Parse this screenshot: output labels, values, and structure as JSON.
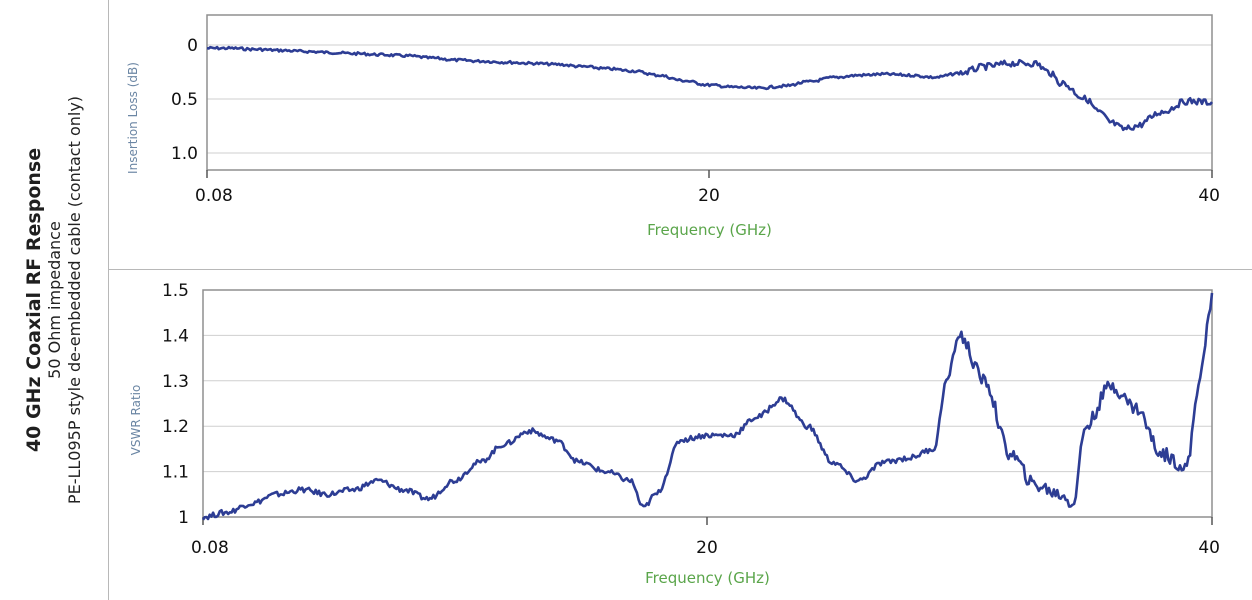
{
  "side": {
    "title": "40 GHz Coaxial RF Response",
    "line1": "50 Ohm impedance",
    "line2": "PE-LL095P style de-embedded cable (contact only)"
  },
  "colors": {
    "series": "#2d3d94",
    "grid": "#cfcfcf",
    "frame": "#8f8f8f",
    "xlabel": "#5aa54a",
    "ylabel": "#6b86a4"
  },
  "chart_data": [
    {
      "type": "line",
      "ylabel": "Insertion Loss (dB)",
      "xlabel": "Frequency (GHz)",
      "x_ticks": [
        "0.08",
        "20",
        "40"
      ],
      "y_ticks": [
        "0",
        "0.5",
        "1.0"
      ],
      "xlim": [
        0.08,
        40
      ],
      "ylim": [
        0,
        1.0
      ],
      "y_inverted": true,
      "grid": true,
      "series": [
        {
          "x": [
            0.08,
            1,
            2,
            3,
            4,
            5,
            6,
            7,
            8,
            9,
            10,
            11,
            12,
            13,
            14,
            15,
            16,
            17,
            18,
            19,
            20,
            21,
            22,
            23,
            24,
            25,
            26,
            27,
            28,
            29,
            30,
            31,
            32,
            33,
            33.5,
            34,
            35,
            35.5,
            36,
            36.5,
            37,
            38,
            39,
            40
          ],
          "y": [
            0.03,
            0.03,
            0.04,
            0.05,
            0.06,
            0.07,
            0.08,
            0.09,
            0.1,
            0.12,
            0.14,
            0.15,
            0.16,
            0.17,
            0.18,
            0.2,
            0.22,
            0.24,
            0.28,
            0.33,
            0.37,
            0.39,
            0.4,
            0.38,
            0.34,
            0.3,
            0.28,
            0.27,
            0.28,
            0.3,
            0.26,
            0.2,
            0.17,
            0.17,
            0.25,
            0.35,
            0.5,
            0.62,
            0.72,
            0.78,
            0.75,
            0.62,
            0.52,
            0.53
          ]
        }
      ]
    },
    {
      "type": "line",
      "ylabel": "VSWR Ratio",
      "xlabel": "Frequency (GHz)",
      "x_ticks": [
        "0.08",
        "20",
        "40"
      ],
      "y_ticks": [
        "1",
        "1.1",
        "1.2",
        "1.3",
        "1.4",
        "1.5"
      ],
      "xlim": [
        0.08,
        40
      ],
      "ylim": [
        1.0,
        1.5
      ],
      "grid": true,
      "series": [
        {
          "x": [
            0.08,
            1,
            2,
            3,
            4,
            5,
            6,
            7,
            8,
            9,
            10,
            11,
            12,
            13,
            14,
            15,
            16,
            17,
            17.5,
            18,
            19,
            20,
            21,
            22,
            23,
            24,
            25,
            26,
            27,
            28,
            29,
            29.5,
            30,
            31,
            32,
            33,
            34,
            34.5,
            35,
            36,
            37,
            38,
            39,
            39.5,
            40
          ],
          "y": [
            1.0,
            1.01,
            1.03,
            1.05,
            1.06,
            1.05,
            1.06,
            1.08,
            1.06,
            1.04,
            1.08,
            1.12,
            1.16,
            1.19,
            1.17,
            1.12,
            1.1,
            1.08,
            1.02,
            1.05,
            1.17,
            1.18,
            1.18,
            1.22,
            1.26,
            1.2,
            1.12,
            1.08,
            1.12,
            1.13,
            1.15,
            1.3,
            1.4,
            1.3,
            1.14,
            1.07,
            1.05,
            1.03,
            1.2,
            1.29,
            1.24,
            1.14,
            1.11,
            1.3,
            1.48
          ]
        }
      ]
    }
  ]
}
